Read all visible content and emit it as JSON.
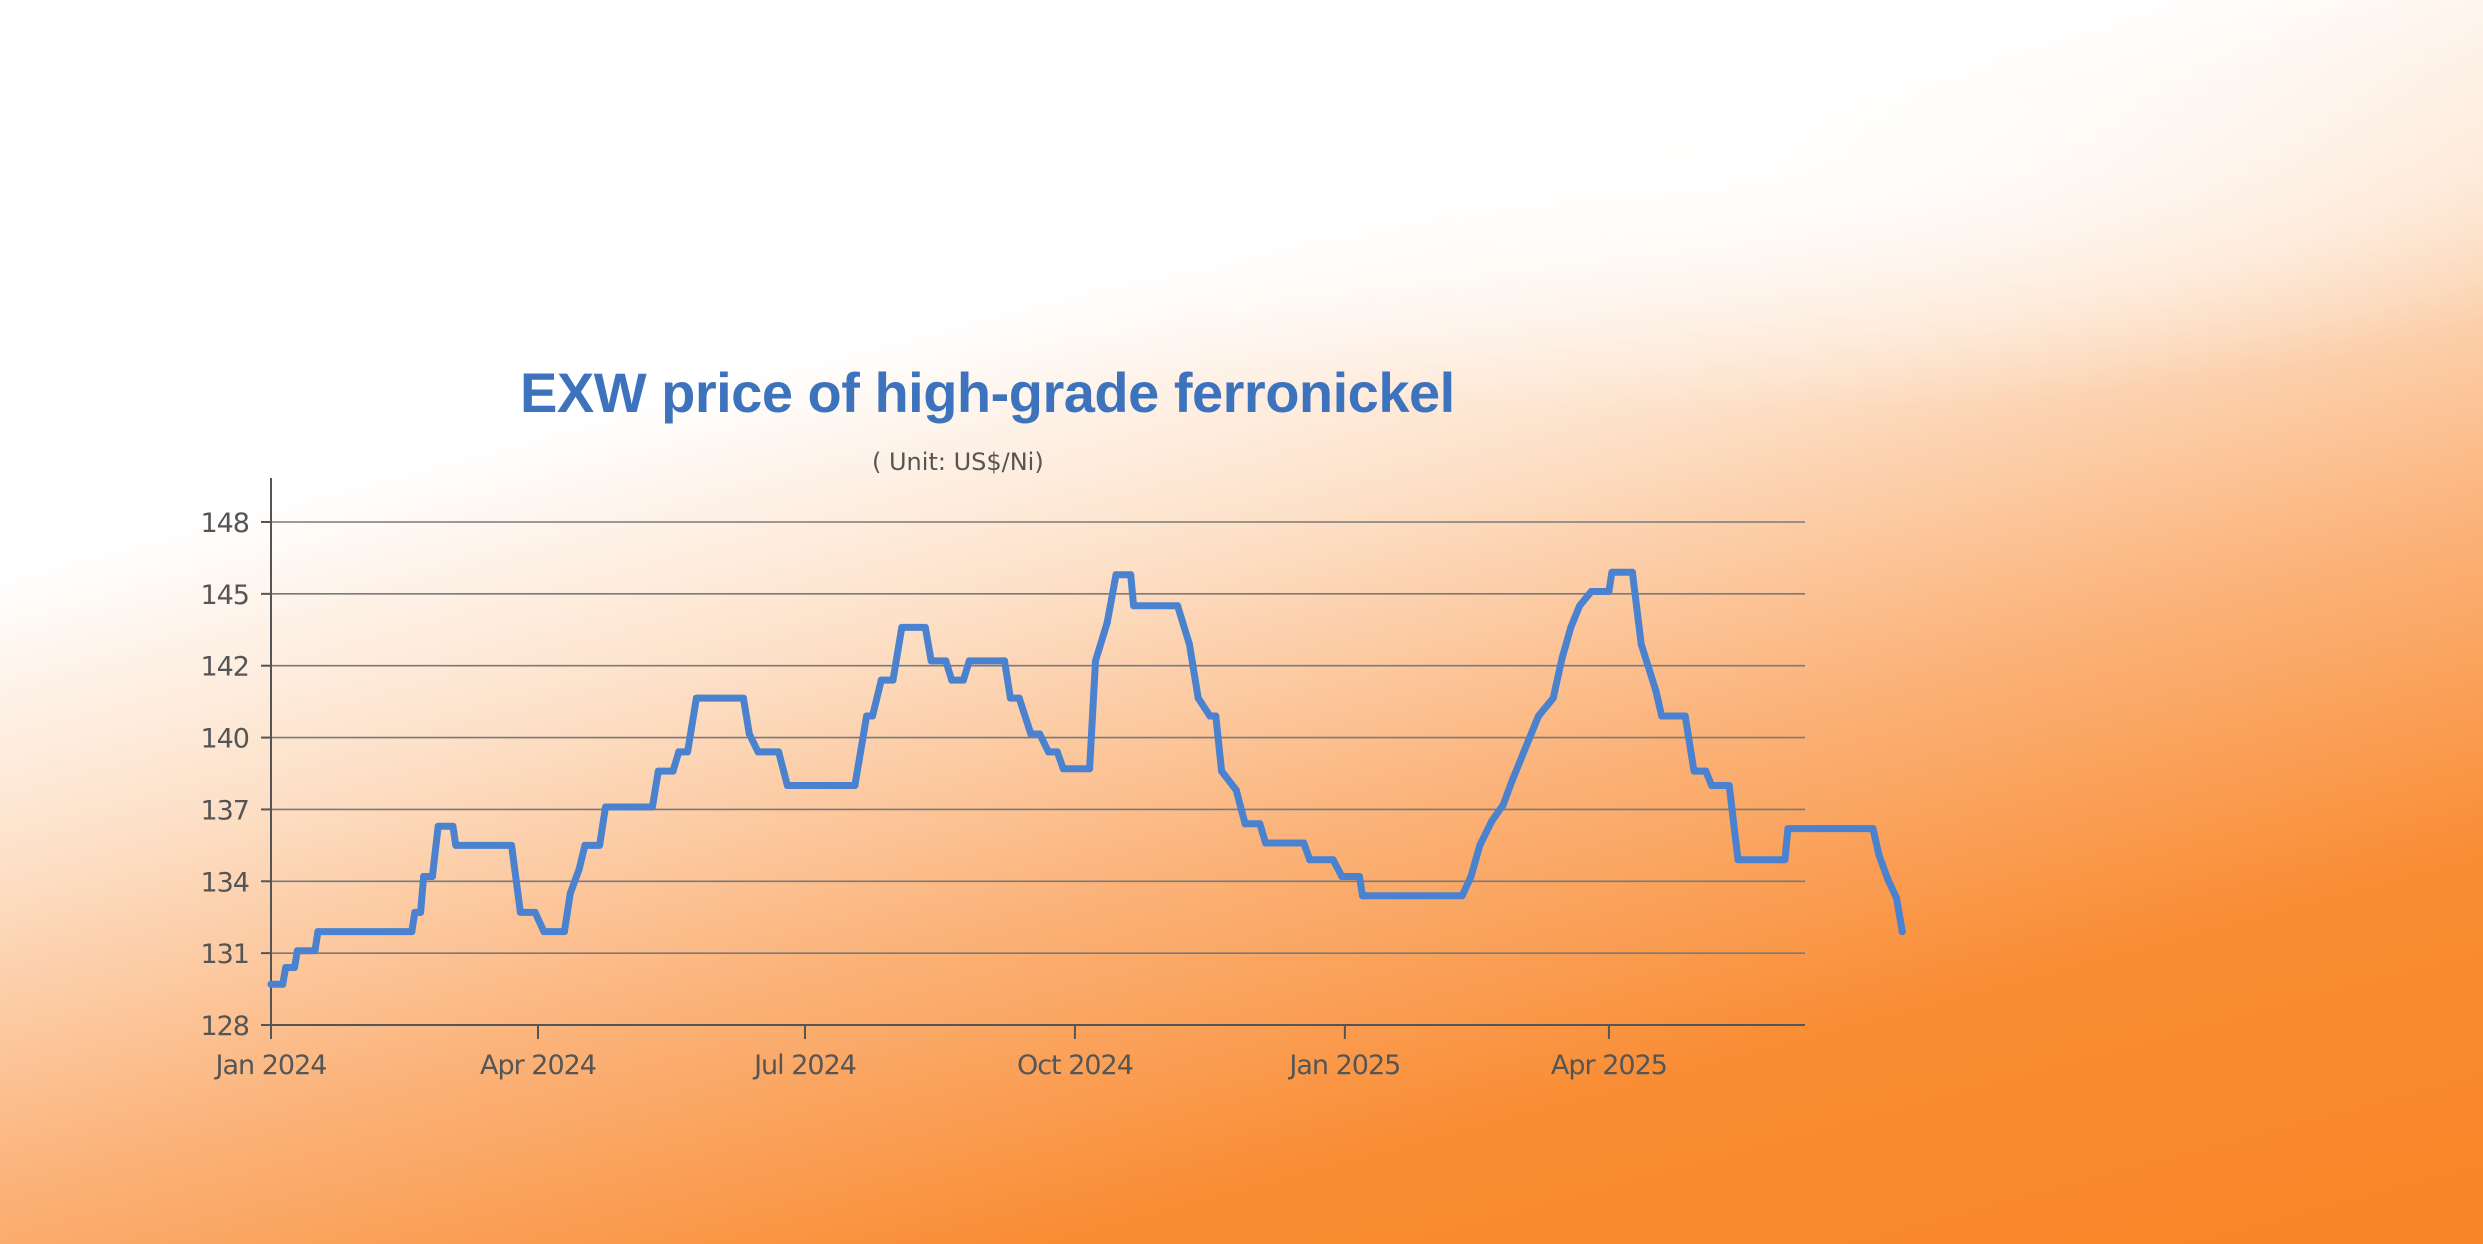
{
  "chart_data": {
    "type": "line",
    "title": "EXW price of high-grade ferronickel",
    "subtitle": "( Unit: US$/Ni)",
    "xlabel": "",
    "ylabel": "",
    "y_ticks": [
      "128",
      "131",
      "134",
      "137",
      "140",
      "142",
      "145",
      "148"
    ],
    "y_tick_values": [
      128,
      131,
      134,
      137,
      140,
      142,
      145,
      148
    ],
    "ylim": [
      128,
      148
    ],
    "x_ticks": [
      "Jan 2024",
      "Apr 2024",
      "Jul 2024",
      "Oct 2024",
      "Jan 2025",
      "Apr 2025"
    ],
    "x_tick_values": [
      "2024-01-01",
      "2024-04-01",
      "2024-07-01",
      "2024-10-01",
      "2025-01-01",
      "2025-04-01"
    ],
    "xlim": [
      "2024-01-01",
      "2025-06-15"
    ],
    "grid": "horizontal",
    "line_color": "#4a82d0",
    "series": [
      {
        "points": [
          [
            "2024-01-01",
            129.7
          ],
          [
            "2024-01-05",
            129.7
          ],
          [
            "2024-01-06",
            130.4
          ],
          [
            "2024-01-09",
            130.4
          ],
          [
            "2024-01-10",
            131.1
          ],
          [
            "2024-01-16",
            131.1
          ],
          [
            "2024-01-17",
            131.9
          ],
          [
            "2024-02-18",
            131.9
          ],
          [
            "2024-02-19",
            132.7
          ],
          [
            "2024-02-21",
            132.7
          ],
          [
            "2024-02-22",
            134.2
          ],
          [
            "2024-02-25",
            134.2
          ],
          [
            "2024-02-27",
            136.3
          ],
          [
            "2024-03-03",
            136.3
          ],
          [
            "2024-03-04",
            135.5
          ],
          [
            "2024-03-23",
            135.5
          ],
          [
            "2024-03-26",
            132.7
          ],
          [
            "2024-03-31",
            132.7
          ],
          [
            "2024-04-03",
            131.9
          ],
          [
            "2024-04-10",
            131.9
          ],
          [
            "2024-04-12",
            133.5
          ],
          [
            "2024-04-15",
            134.5
          ],
          [
            "2024-04-17",
            135.5
          ],
          [
            "2024-04-22",
            135.5
          ],
          [
            "2024-04-24",
            137.1
          ],
          [
            "2024-05-10",
            137.1
          ],
          [
            "2024-05-12",
            138.6
          ],
          [
            "2024-05-17",
            138.6
          ],
          [
            "2024-05-19",
            139.4
          ],
          [
            "2024-05-22",
            139.4
          ],
          [
            "2024-05-25",
            141.1
          ],
          [
            "2024-06-10",
            141.1
          ],
          [
            "2024-06-12",
            140.1
          ],
          [
            "2024-06-15",
            139.4
          ],
          [
            "2024-06-22",
            139.4
          ],
          [
            "2024-06-25",
            138.0
          ],
          [
            "2024-07-18",
            138.0
          ],
          [
            "2024-07-22",
            140.6
          ],
          [
            "2024-07-24",
            140.6
          ],
          [
            "2024-07-27",
            141.6
          ],
          [
            "2024-07-31",
            141.6
          ],
          [
            "2024-08-03",
            143.6
          ],
          [
            "2024-08-11",
            143.6
          ],
          [
            "2024-08-13",
            142.2
          ],
          [
            "2024-08-18",
            142.2
          ],
          [
            "2024-08-20",
            141.6
          ],
          [
            "2024-08-24",
            141.6
          ],
          [
            "2024-08-26",
            142.2
          ],
          [
            "2024-09-07",
            142.2
          ],
          [
            "2024-09-09",
            141.1
          ],
          [
            "2024-09-12",
            141.1
          ],
          [
            "2024-09-16",
            140.1
          ],
          [
            "2024-09-19",
            140.1
          ],
          [
            "2024-09-22",
            139.4
          ],
          [
            "2024-09-25",
            139.4
          ],
          [
            "2024-09-27",
            138.7
          ],
          [
            "2024-10-06",
            138.7
          ],
          [
            "2024-10-08",
            142.2
          ],
          [
            "2024-10-12",
            143.8
          ],
          [
            "2024-10-15",
            145.8
          ],
          [
            "2024-10-20",
            145.8
          ],
          [
            "2024-10-21",
            144.5
          ],
          [
            "2024-11-05",
            144.5
          ],
          [
            "2024-11-09",
            142.9
          ],
          [
            "2024-11-12",
            141.1
          ],
          [
            "2024-11-16",
            140.6
          ],
          [
            "2024-11-18",
            140.6
          ],
          [
            "2024-11-20",
            138.6
          ],
          [
            "2024-11-25",
            137.8
          ],
          [
            "2024-11-28",
            136.4
          ],
          [
            "2024-12-03",
            136.4
          ],
          [
            "2024-12-05",
            135.6
          ],
          [
            "2024-12-18",
            135.6
          ],
          [
            "2024-12-20",
            134.9
          ],
          [
            "2024-12-28",
            134.9
          ],
          [
            "2024-12-31",
            134.2
          ],
          [
            "2025-01-06",
            134.2
          ],
          [
            "2025-01-07",
            133.4
          ],
          [
            "2025-02-10",
            133.4
          ],
          [
            "2025-02-13",
            134.2
          ],
          [
            "2025-02-16",
            135.5
          ],
          [
            "2025-02-20",
            136.5
          ],
          [
            "2025-02-24",
            137.2
          ],
          [
            "2025-02-27",
            138.2
          ],
          [
            "2025-03-03",
            139.4
          ],
          [
            "2025-03-08",
            140.6
          ],
          [
            "2025-03-13",
            141.1
          ],
          [
            "2025-03-16",
            142.3
          ],
          [
            "2025-03-19",
            143.6
          ],
          [
            "2025-03-22",
            144.5
          ],
          [
            "2025-03-26",
            145.1
          ],
          [
            "2025-04-01",
            145.1
          ],
          [
            "2025-04-02",
            145.9
          ],
          [
            "2025-04-09",
            145.9
          ],
          [
            "2025-04-12",
            142.9
          ],
          [
            "2025-04-17",
            141.3
          ],
          [
            "2025-04-19",
            140.6
          ],
          [
            "2025-04-27",
            140.6
          ],
          [
            "2025-04-30",
            138.6
          ],
          [
            "2025-05-04",
            138.6
          ],
          [
            "2025-05-06",
            138.0
          ],
          [
            "2025-05-12",
            138.0
          ],
          [
            "2025-05-15",
            134.9
          ],
          [
            "2025-05-31",
            134.9
          ],
          [
            "2025-06-01",
            136.2
          ],
          [
            "2025-06-30",
            136.2
          ],
          [
            "2025-07-02",
            135.1
          ],
          [
            "2025-07-05",
            134.1
          ],
          [
            "2025-07-08",
            133.3
          ],
          [
            "2025-07-10",
            131.9
          ]
        ]
      }
    ]
  }
}
